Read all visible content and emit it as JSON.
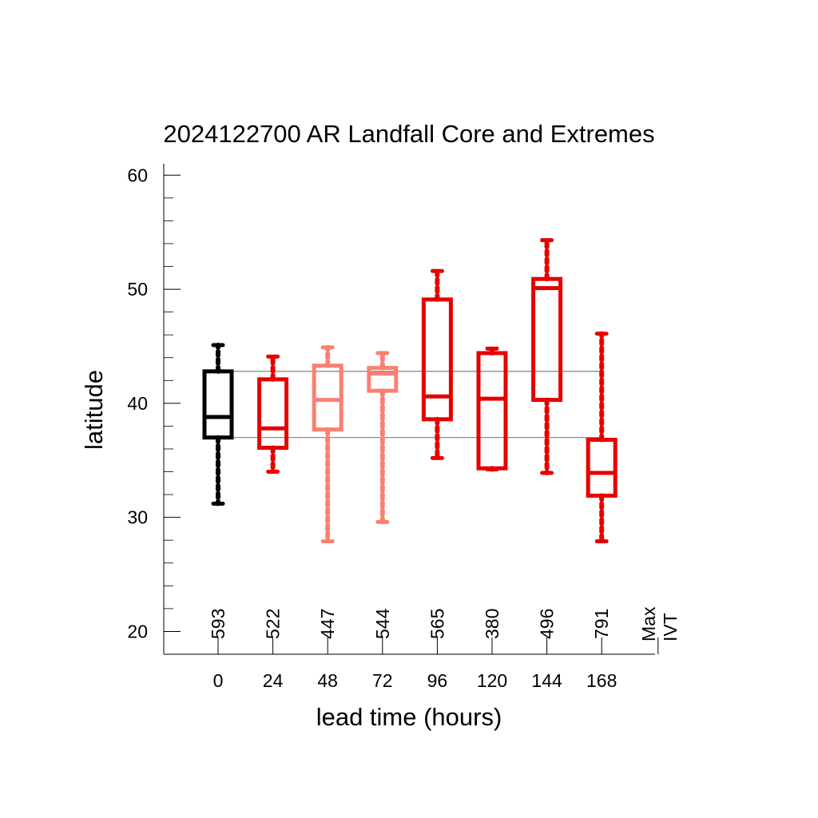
{
  "chart_data": {
    "type": "box",
    "title": "2024122700 AR Landfall Core and Extremes",
    "xlabel": "lead time (hours)",
    "ylabel": "latitude",
    "ylim": [
      18,
      61
    ],
    "yticks": [
      20,
      30,
      40,
      50,
      60
    ],
    "y_minor_step": 2,
    "categories": [
      "0",
      "24",
      "48",
      "72",
      "96",
      "120",
      "144",
      "168"
    ],
    "counts": [
      "593",
      "522",
      "447",
      "544",
      "565",
      "380",
      "496",
      "791"
    ],
    "max_ivt_label": [
      "Max",
      "IVT"
    ],
    "reference_lines": [
      42.8,
      37.0
    ],
    "boxes": [
      {
        "lead": "0",
        "whisker_low": 31.2,
        "q1": 37.0,
        "median": 38.8,
        "q3": 42.8,
        "whisker_high": 45.1,
        "color": "#000000"
      },
      {
        "lead": "24",
        "whisker_low": 34.0,
        "q1": 36.1,
        "median": 37.8,
        "q3": 42.1,
        "whisker_high": 44.1,
        "color": "#e60000"
      },
      {
        "lead": "48",
        "whisker_low": 27.9,
        "q1": 37.7,
        "median": 40.3,
        "q3": 43.3,
        "whisker_high": 44.9,
        "color": "#fa8072"
      },
      {
        "lead": "72",
        "whisker_low": 29.6,
        "q1": 41.1,
        "median": 42.6,
        "q3": 43.1,
        "whisker_high": 44.4,
        "color": "#fa8072"
      },
      {
        "lead": "96",
        "whisker_low": 35.2,
        "q1": 38.6,
        "median": 40.6,
        "q3": 49.1,
        "whisker_high": 51.6,
        "color": "#e60000"
      },
      {
        "lead": "120",
        "whisker_low": 34.2,
        "q1": 34.3,
        "median": 40.4,
        "q3": 44.4,
        "whisker_high": 44.8,
        "color": "#e60000"
      },
      {
        "lead": "144",
        "whisker_low": 33.9,
        "q1": 40.3,
        "median": 50.1,
        "q3": 50.9,
        "whisker_high": 54.3,
        "color": "#e60000"
      },
      {
        "lead": "168",
        "whisker_low": 27.9,
        "q1": 31.9,
        "median": 33.9,
        "q3": 36.8,
        "whisker_high": 46.1,
        "color": "#e60000"
      }
    ]
  }
}
